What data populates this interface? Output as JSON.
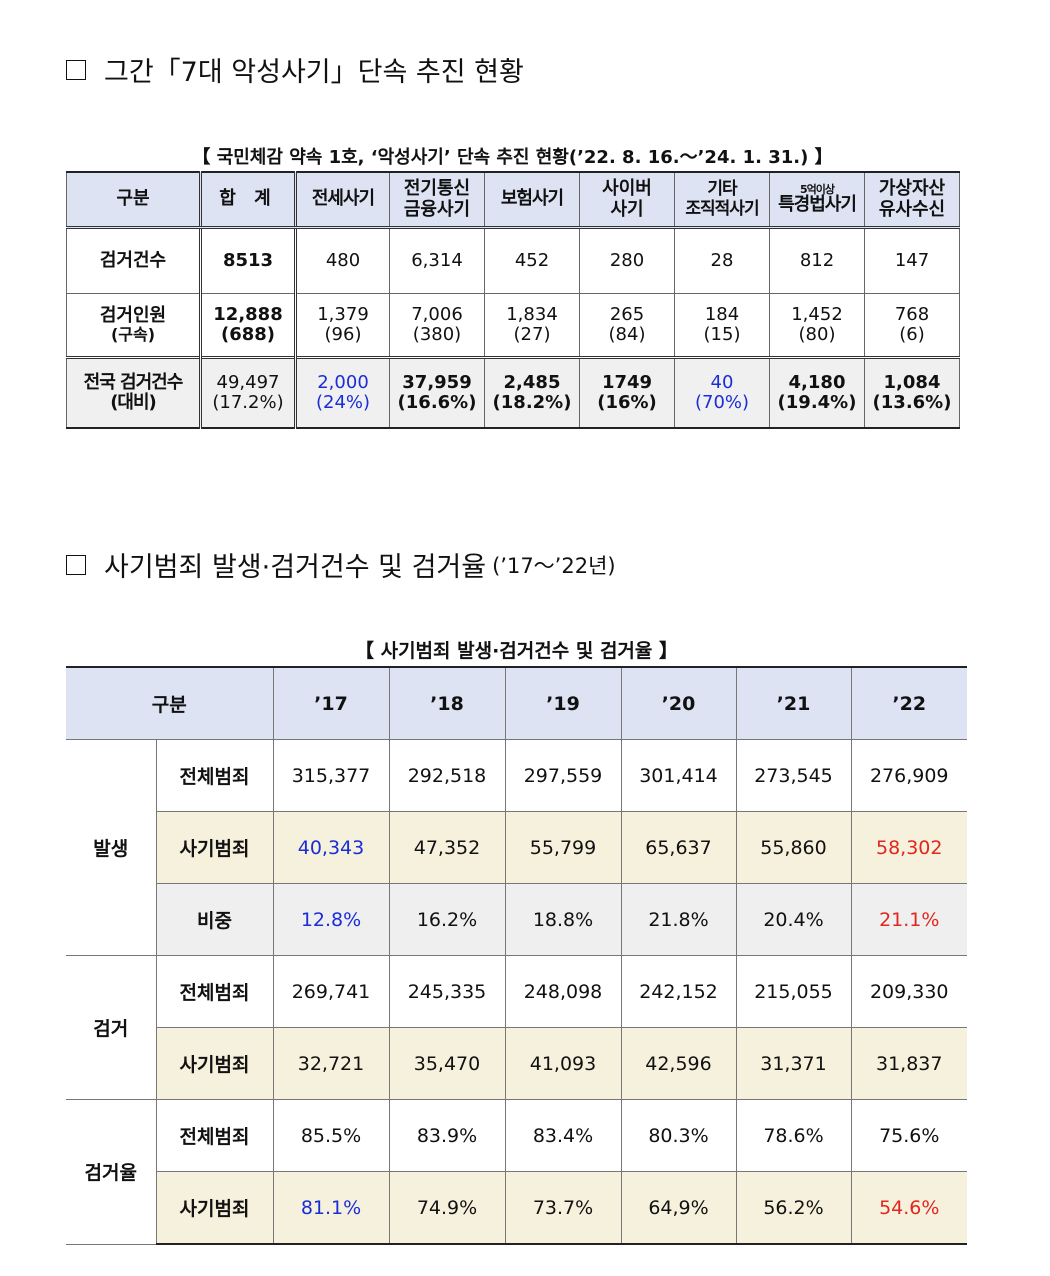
{
  "section1": {
    "heading": "그간「7대 악성사기」단속 추진 현황",
    "caption": "【 국민체감 약속 1호, ‘악성사기’ 단속 추진 현황(’22. 8. 16.～’24. 1. 31.) 】",
    "headers": [
      "구분",
      "합 계",
      "전세사기",
      "전기통신\n금융사기",
      "보험사기",
      "사이버\n사기",
      "기타\n조직적사기",
      "5억이상",
      "특경법사기",
      "가상자산\n유사수신"
    ],
    "rows": [
      {
        "label": "검거건수",
        "values": [
          "8513",
          "480",
          "6,314",
          "452",
          "280",
          "28",
          "812",
          "147"
        ]
      },
      {
        "label": "검거인원",
        "sub": "(구속)",
        "values": [
          "12,888",
          "1,379",
          "7,006",
          "1,834",
          "265",
          "184",
          "1,452",
          "768"
        ],
        "subvalues": [
          "(688)",
          "(96)",
          "(380)",
          "(27)",
          "(84)",
          "(15)",
          "(80)",
          "(6)"
        ]
      },
      {
        "label": "전국 검거건수",
        "sub": "(대비)",
        "values": [
          "49,497",
          "2,000",
          "37,959",
          "2,485",
          "1749",
          "40",
          "4,180",
          "1,084"
        ],
        "subvalues": [
          "(17.2%)",
          "(24%)",
          "(16.6%)",
          "(18.2%)",
          "(16%)",
          "(70%)",
          "(19.4%)",
          "(13.6%)"
        ]
      }
    ]
  },
  "section2": {
    "heading": "사기범죄 발생·검거건수 및 검거율",
    "heading_small": "(’17～’22년)",
    "caption": "【 사기범죄 발생·검거건수 및 검거율 】",
    "corner": "구분",
    "years": [
      "’17",
      "’18",
      "’19",
      "’20",
      "’21",
      "’22"
    ],
    "groups": [
      {
        "label": "발생",
        "rows": [
          {
            "label": "전체범죄",
            "values": [
              "315,377",
              "292,518",
              "297,559",
              "301,414",
              "273,545",
              "276,909"
            ]
          },
          {
            "label": "사기범죄",
            "values": [
              "40,343",
              "47,352",
              "55,799",
              "65,637",
              "55,860",
              "58,302"
            ]
          },
          {
            "label": "비중",
            "values": [
              "12.8%",
              "16.2%",
              "18.8%",
              "21.8%",
              "20.4%",
              "21.1%"
            ]
          }
        ]
      },
      {
        "label": "검거",
        "rows": [
          {
            "label": "전체범죄",
            "values": [
              "269,741",
              "245,335",
              "248,098",
              "242,152",
              "215,055",
              "209,330"
            ]
          },
          {
            "label": "사기범죄",
            "values": [
              "32,721",
              "35,470",
              "41,093",
              "42,596",
              "31,371",
              "31,837"
            ]
          }
        ]
      },
      {
        "label": "검거율",
        "rows": [
          {
            "label": "전체범죄",
            "values": [
              "85.5%",
              "83.9%",
              "83.4%",
              "80.3%",
              "78.6%",
              "75.6%"
            ]
          },
          {
            "label": "사기범죄",
            "values": [
              "81.1%",
              "74.9%",
              "73.7%",
              "64,9%",
              "56.2%",
              "54.6%"
            ]
          }
        ]
      }
    ]
  },
  "colors": {
    "header_bg": "#dde3f3",
    "highlight_blue": "#1a2dd6",
    "highlight_red": "#e0261e",
    "beige_row": "#f6f1dd",
    "gray_row": "#efefef"
  }
}
